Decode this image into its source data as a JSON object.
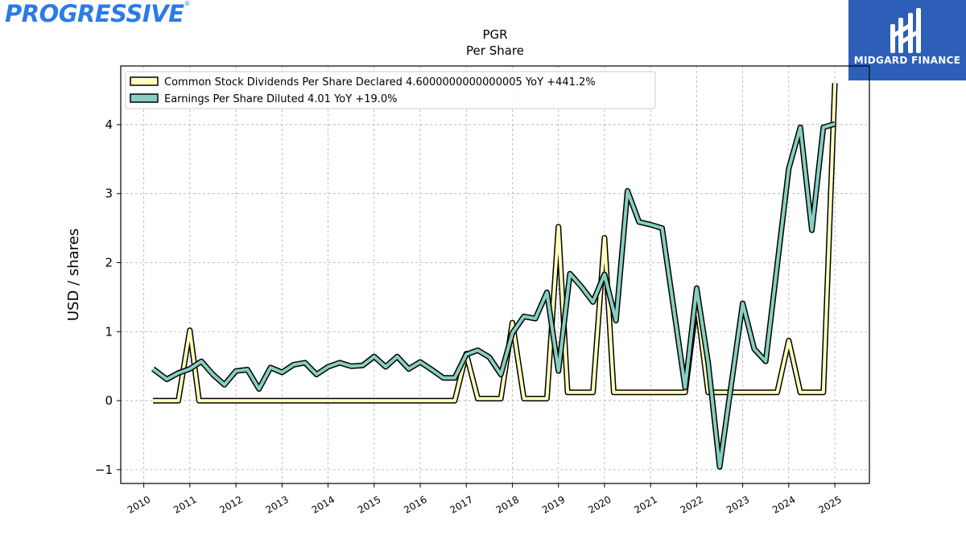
{
  "brand": {
    "logo_text": "PROGRESSIVE",
    "logo_mark": "®",
    "badge_text": "MIDGARD FINANCE",
    "badge_color": "#2d5fb8",
    "logo_color": "#2c7be5"
  },
  "chart_data": {
    "type": "line",
    "title": "PGR",
    "subtitle": "Per  Share",
    "xlabel": "",
    "ylabel": "USD / shares",
    "xlim": [
      2009.5,
      2025.75
    ],
    "ylim": [
      -1.2,
      4.85
    ],
    "x_ticks": [
      "2010",
      "2011",
      "2012",
      "2013",
      "2014",
      "2015",
      "2016",
      "2017",
      "2018",
      "2019",
      "2020",
      "2021",
      "2022",
      "2023",
      "2024",
      "2025"
    ],
    "y_ticks": [
      -1,
      0,
      1,
      2,
      3,
      4
    ],
    "y_tick_labels": [
      "−1",
      "0",
      "1",
      "2",
      "3",
      "4"
    ],
    "grid": true,
    "legend_position": "top-left",
    "series": [
      {
        "name": "Common Stock Dividends Per Share Declared  4.6000000000000005 YoY +441.2%",
        "color": "#ffffbe",
        "points": [
          [
            2010.2,
            0.0
          ],
          [
            2010.5,
            0.0
          ],
          [
            2010.75,
            0.0
          ],
          [
            2011.0,
            1.02
          ],
          [
            2011.2,
            0.0
          ],
          [
            2011.5,
            0.0
          ],
          [
            2012.0,
            0.0
          ],
          [
            2013.0,
            0.0
          ],
          [
            2014.0,
            0.0
          ],
          [
            2015.0,
            0.0
          ],
          [
            2016.0,
            0.0
          ],
          [
            2016.75,
            0.0
          ],
          [
            2017.0,
            0.68
          ],
          [
            2017.25,
            0.03
          ],
          [
            2017.75,
            0.03
          ],
          [
            2018.0,
            1.13
          ],
          [
            2018.25,
            0.03
          ],
          [
            2018.75,
            0.03
          ],
          [
            2019.0,
            2.52
          ],
          [
            2019.2,
            0.12
          ],
          [
            2019.75,
            0.12
          ],
          [
            2020.0,
            2.36
          ],
          [
            2020.2,
            0.12
          ],
          [
            2021.0,
            0.12
          ],
          [
            2021.75,
            0.12
          ],
          [
            2022.0,
            1.44
          ],
          [
            2022.25,
            0.12
          ],
          [
            2023.0,
            0.12
          ],
          [
            2023.75,
            0.12
          ],
          [
            2024.0,
            0.87
          ],
          [
            2024.25,
            0.12
          ],
          [
            2024.75,
            0.12
          ],
          [
            2025.0,
            4.6
          ]
        ]
      },
      {
        "name": "Earnings Per Share Diluted  4.01 YoY +19.0%",
        "color": "#87cfc0",
        "points": [
          [
            2010.2,
            0.46
          ],
          [
            2010.5,
            0.31
          ],
          [
            2010.75,
            0.4
          ],
          [
            2011.0,
            0.46
          ],
          [
            2011.25,
            0.57
          ],
          [
            2011.5,
            0.38
          ],
          [
            2011.75,
            0.23
          ],
          [
            2012.0,
            0.43
          ],
          [
            2012.25,
            0.45
          ],
          [
            2012.5,
            0.17
          ],
          [
            2012.75,
            0.48
          ],
          [
            2013.0,
            0.41
          ],
          [
            2013.25,
            0.52
          ],
          [
            2013.5,
            0.55
          ],
          [
            2013.75,
            0.38
          ],
          [
            2014.0,
            0.49
          ],
          [
            2014.25,
            0.55
          ],
          [
            2014.5,
            0.5
          ],
          [
            2014.75,
            0.51
          ],
          [
            2015.0,
            0.64
          ],
          [
            2015.25,
            0.49
          ],
          [
            2015.5,
            0.64
          ],
          [
            2015.75,
            0.46
          ],
          [
            2016.0,
            0.56
          ],
          [
            2016.25,
            0.45
          ],
          [
            2016.5,
            0.33
          ],
          [
            2016.75,
            0.33
          ],
          [
            2017.0,
            0.67
          ],
          [
            2017.25,
            0.73
          ],
          [
            2017.5,
            0.63
          ],
          [
            2017.75,
            0.38
          ],
          [
            2018.0,
            0.98
          ],
          [
            2018.25,
            1.22
          ],
          [
            2018.5,
            1.19
          ],
          [
            2018.75,
            1.57
          ],
          [
            2019.0,
            0.43
          ],
          [
            2019.25,
            1.84
          ],
          [
            2019.5,
            1.65
          ],
          [
            2019.75,
            1.43
          ],
          [
            2020.0,
            1.83
          ],
          [
            2020.25,
            1.16
          ],
          [
            2020.5,
            3.04
          ],
          [
            2020.75,
            2.59
          ],
          [
            2021.0,
            2.55
          ],
          [
            2021.25,
            2.5
          ],
          [
            2021.75,
            0.19
          ],
          [
            2022.0,
            1.63
          ],
          [
            2022.25,
            0.55
          ],
          [
            2022.5,
            -0.96
          ],
          [
            2023.0,
            1.41
          ],
          [
            2023.25,
            0.75
          ],
          [
            2023.5,
            0.57
          ],
          [
            2024.0,
            3.36
          ],
          [
            2024.25,
            3.96
          ],
          [
            2024.5,
            2.47
          ],
          [
            2024.75,
            3.96
          ],
          [
            2025.0,
            4.01
          ]
        ]
      }
    ]
  }
}
